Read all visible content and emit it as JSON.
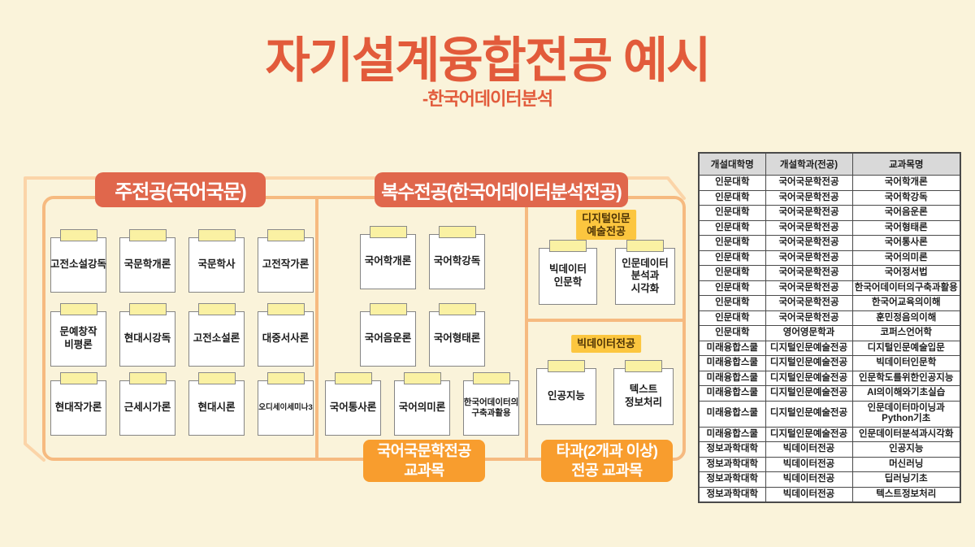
{
  "title": "자기설계융합전공 예시",
  "subtitle": "-한국어데이터분석",
  "colors": {
    "background": "#FAF3DA",
    "title_text": "#E25B3B",
    "section_header_bg": "#E0674C",
    "box_outline_front": "#F6BA80",
    "box_outline_back": "#FBD4A8",
    "sticky_tab_yellow": "#FAF1A3",
    "sub_major_label_bg": "#FCC63F",
    "bottom_label_bg": "#F89D2E",
    "table_header_bg": "#D9D9D9"
  },
  "diagram": {
    "main_major": {
      "header": "주전공(국어국문)",
      "courses": [
        "고전소설강독",
        "국문학개론",
        "국문학사",
        "고전작가론",
        "문예창작\n비평론",
        "현대시강독",
        "고전소설론",
        "대중서사론",
        "현대작가론",
        "근세시가론",
        "현대시론",
        "오디세이세미나3"
      ]
    },
    "double_major": {
      "header": "복수전공(한국어데이터분석전공)",
      "courses": [
        "국어학개론",
        "국어학강독",
        "국어음운론",
        "국어형태론",
        "국어통사론",
        "국어의미론",
        "한국어데이터의\n구축과활용"
      ],
      "sub_majors": [
        {
          "label": "디지털인문\n예술전공",
          "courses": [
            "빅데이터\n인문학",
            "인문데이터\n분석과\n시각화"
          ]
        },
        {
          "label": "빅데이터전공",
          "courses": [
            "인공지능",
            "텍스트\n정보처리"
          ]
        }
      ]
    },
    "bottom_labels": [
      {
        "label": "국어국문학전공\n교과목"
      },
      {
        "label": "타과(2개과 이상)\n전공 교과목"
      }
    ]
  },
  "table": {
    "headers": [
      "개설대학명",
      "개설학과(전공)",
      "교과목명"
    ],
    "rows": [
      [
        "인문대학",
        "국어국문학전공",
        "국어학개론"
      ],
      [
        "인문대학",
        "국어국문학전공",
        "국어학강독"
      ],
      [
        "인문대학",
        "국어국문학전공",
        "국어음운론"
      ],
      [
        "인문대학",
        "국어국문학전공",
        "국어형태론"
      ],
      [
        "인문대학",
        "국어국문학전공",
        "국어통사론"
      ],
      [
        "인문대학",
        "국어국문학전공",
        "국어의미론"
      ],
      [
        "인문대학",
        "국어국문학전공",
        "국어정서법"
      ],
      [
        "인문대학",
        "국어국문학전공",
        "한국어데이터의구축과활용"
      ],
      [
        "인문대학",
        "국어국문학전공",
        "한국어교육의이해"
      ],
      [
        "인문대학",
        "국어국문학전공",
        "훈민정음의이해"
      ],
      [
        "인문대학",
        "영어영문학과",
        "코퍼스언어학"
      ],
      [
        "미래융합스쿨",
        "디지털인문예술전공",
        "디지털인문예술입문"
      ],
      [
        "미래융합스쿨",
        "디지털인문예술전공",
        "빅데이터인문학"
      ],
      [
        "미래융합스쿨",
        "디지털인문예술전공",
        "인문학도를위한인공지능"
      ],
      [
        "미래융합스쿨",
        "디지털인문예술전공",
        "AI의이해와기초실습"
      ],
      [
        "미래융합스쿨",
        "디지털인문예술전공",
        "인문데이터마이닝과\nPython기초"
      ],
      [
        "미래융합스쿨",
        "디지털인문예술전공",
        "인문데이터분석과시각화"
      ],
      [
        "정보과학대학",
        "빅데이터전공",
        "인공지능"
      ],
      [
        "정보과학대학",
        "빅데이터전공",
        "머신러닝"
      ],
      [
        "정보과학대학",
        "빅데이터전공",
        "딥러닝기초"
      ],
      [
        "정보과학대학",
        "빅데이터전공",
        "텍스트정보처리"
      ]
    ]
  }
}
